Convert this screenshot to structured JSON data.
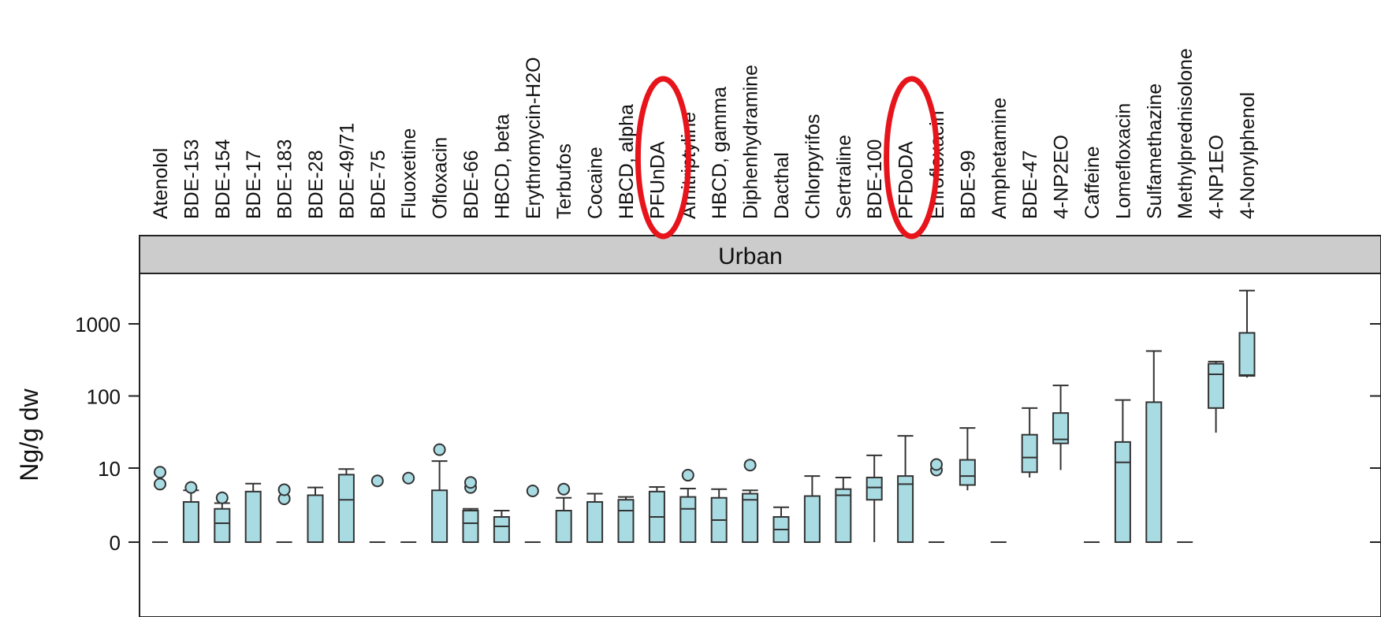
{
  "chart_data": {
    "type": "boxplot",
    "panel_title": "Urban",
    "ylabel": "Ng/g dw",
    "yscale": "log-like (0 at baseline)",
    "yticks": [
      {
        "value": 0,
        "label": "0"
      },
      {
        "value": 10,
        "label": "10"
      },
      {
        "value": 100,
        "label": "100"
      },
      {
        "value": 1000,
        "label": "1000"
      }
    ],
    "ylim": [
      0,
      3000
    ],
    "colors": {
      "box_fill": "#a9dbe3",
      "box_stroke": "#333333",
      "strip": "#cccccc",
      "annotation": "#e8141b"
    },
    "categories": [
      "Atenolol",
      "BDE-153",
      "BDE-154",
      "BDE-17",
      "BDE-183",
      "BDE-28",
      "BDE-49/71",
      "BDE-75",
      "Fluoxetine",
      "Ofloxacin",
      "BDE-66",
      "HBCD, beta",
      "Erythromycin-H2O",
      "Terbufos",
      "Cocaine",
      "HBCD, alpha",
      "PFUnDA",
      "Amitriptyline",
      "HBCD, gamma",
      "Diphenhydramine",
      "Dacthal",
      "Chlorpyrifos",
      "Sertraline",
      "BDE-100",
      "PFDoDA",
      "Enrofloxacin",
      "BDE-99",
      "Amphetamine",
      "BDE-47",
      "4-NP2EO",
      "Caffeine",
      "Lomefloxacin",
      "Sulfamethazine",
      "Methylprednisolone",
      "4-NP1EO",
      "4-Nonylphenol"
    ],
    "boxes": [
      {
        "min": 0,
        "q1": 0,
        "median": 0,
        "q3": 0,
        "max": 0,
        "outliers": [
          4.2,
          8.0
        ]
      },
      {
        "min": 0,
        "q1": 0,
        "median": 0,
        "q3": 1.6,
        "max": 3.0,
        "outliers": [
          3.5
        ]
      },
      {
        "min": 0,
        "q1": 0,
        "median": 0.6,
        "q3": 1.1,
        "max": 1.5,
        "outliers": [
          2.0
        ]
      },
      {
        "min": 0,
        "q1": 0,
        "median": 0,
        "q3": 2.8,
        "max": 4.3,
        "outliers": []
      },
      {
        "min": 0,
        "q1": 0,
        "median": 0,
        "q3": 0,
        "max": 0,
        "outliers": [
          1.9,
          3.1
        ]
      },
      {
        "min": 0,
        "q1": 0,
        "median": 0,
        "q3": 2.3,
        "max": 3.5,
        "outliers": []
      },
      {
        "min": 0,
        "q1": 0,
        "median": 1.8,
        "q3": 7.0,
        "max": 9.5,
        "outliers": []
      },
      {
        "min": 0,
        "q1": 0,
        "median": 0,
        "q3": 0,
        "max": 0,
        "outliers": [
          5.0
        ]
      },
      {
        "min": 0,
        "q1": 0,
        "median": 0,
        "q3": 0,
        "max": 0,
        "outliers": [
          5.8
        ]
      },
      {
        "min": 0,
        "q1": 0,
        "median": 0,
        "q3": 3.0,
        "max": 12.5,
        "outliers": [
          18.0
        ]
      },
      {
        "min": 0,
        "q1": 0,
        "median": 0.6,
        "q3": 1.0,
        "max": 1.1,
        "outliers": [
          3.5,
          4.6
        ]
      },
      {
        "min": 0,
        "q1": 0,
        "median": 0.5,
        "q3": 0.8,
        "max": 1.0,
        "outliers": []
      },
      {
        "min": 0,
        "q1": 0,
        "median": 0,
        "q3": 0,
        "max": 0,
        "outliers": [
          2.9
        ]
      },
      {
        "min": 0,
        "q1": 0,
        "median": 0,
        "q3": 1.0,
        "max": 2.0,
        "outliers": [
          3.2
        ]
      },
      {
        "min": 0,
        "q1": 0,
        "median": 0,
        "q3": 1.6,
        "max": 2.5,
        "outliers": []
      },
      {
        "min": 0,
        "q1": 0,
        "median": 1.0,
        "q3": 1.8,
        "max": 2.1,
        "outliers": []
      },
      {
        "min": 0,
        "q1": 0,
        "median": 0.8,
        "q3": 2.8,
        "max": 3.6,
        "outliers": []
      },
      {
        "min": 0,
        "q1": 0,
        "median": 1.1,
        "q3": 2.1,
        "max": 3.3,
        "outliers": [
          6.8
        ]
      },
      {
        "min": 0,
        "q1": 0,
        "median": 0.7,
        "q3": 2.0,
        "max": 3.2,
        "outliers": []
      },
      {
        "min": 0,
        "q1": 0,
        "median": 1.8,
        "q3": 2.5,
        "max": 3.0,
        "outliers": [
          11.0
        ]
      },
      {
        "min": 0,
        "q1": 0,
        "median": 0.4,
        "q3": 0.8,
        "max": 1.2,
        "outliers": []
      },
      {
        "min": 0,
        "q1": 0,
        "median": 0,
        "q3": 2.2,
        "max": 6.5,
        "outliers": []
      },
      {
        "min": 0,
        "q1": 0,
        "median": 2.3,
        "q3": 3.2,
        "max": 6.0,
        "outliers": []
      },
      {
        "min": 0,
        "q1": 1.8,
        "median": 3.5,
        "q3": 6.0,
        "max": 15.0,
        "outliers": []
      },
      {
        "min": 0,
        "q1": 0,
        "median": 4.2,
        "q3": 6.5,
        "max": 28.0,
        "outliers": []
      },
      {
        "min": 0,
        "q1": 0,
        "median": 0,
        "q3": 0,
        "max": 0,
        "outliers": [
          9.0,
          11.2
        ]
      },
      {
        "min": 3.0,
        "q1": 4.0,
        "median": 6.5,
        "q3": 13.0,
        "max": 36.0,
        "outliers": []
      },
      {
        "min": 0,
        "q1": 0,
        "median": 0,
        "q3": 0,
        "max": 0,
        "outliers": []
      },
      {
        "min": 6.0,
        "q1": 8.0,
        "median": 14.0,
        "q3": 29.0,
        "max": 68.0,
        "outliers": []
      },
      {
        "min": 9.0,
        "q1": 22.0,
        "median": 25.0,
        "q3": 58.0,
        "max": 140.0,
        "outliers": []
      },
      {
        "min": 0,
        "q1": 0,
        "median": 0,
        "q3": 0,
        "max": 0,
        "outliers": []
      },
      {
        "min": 0,
        "q1": 0,
        "median": 12.0,
        "q3": 23.0,
        "max": 88.0,
        "outliers": []
      },
      {
        "min": 0,
        "q1": 0,
        "median": 0,
        "q3": 82.0,
        "max": 420.0,
        "outliers": []
      },
      {
        "min": 0,
        "q1": 0,
        "median": 0,
        "q3": 0,
        "max": 0,
        "outliers": []
      },
      {
        "min": 31.0,
        "q1": 68.0,
        "median": 200.0,
        "q3": 280.0,
        "max": 300.0,
        "outliers": []
      },
      {
        "min": 180.0,
        "q1": 190.0,
        "median": 195.0,
        "q3": 750.0,
        "max": 2900.0,
        "outliers": []
      }
    ],
    "highlighted": [
      "PFUnDA",
      "PFDoDA"
    ]
  }
}
